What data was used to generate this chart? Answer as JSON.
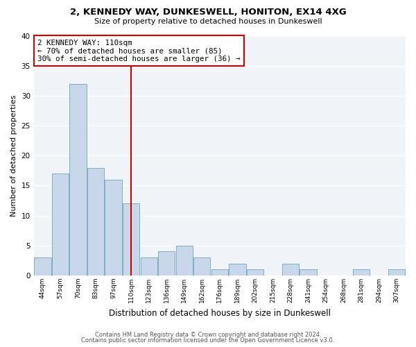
{
  "title": "2, KENNEDY WAY, DUNKESWELL, HONITON, EX14 4XG",
  "subtitle": "Size of property relative to detached houses in Dunkeswell",
  "xlabel": "Distribution of detached houses by size in Dunkeswell",
  "ylabel": "Number of detached properties",
  "bar_color": "#c8d8ea",
  "bar_edge_color": "#7aaec8",
  "background_color": "#ffffff",
  "plot_bg_color": "#f0f4f8",
  "grid_color": "#ffffff",
  "marker_line_color": "#cc0000",
  "categories": [
    "44sqm",
    "57sqm",
    "70sqm",
    "83sqm",
    "97sqm",
    "110sqm",
    "123sqm",
    "136sqm",
    "149sqm",
    "162sqm",
    "176sqm",
    "189sqm",
    "202sqm",
    "215sqm",
    "228sqm",
    "241sqm",
    "254sqm",
    "268sqm",
    "281sqm",
    "294sqm",
    "307sqm"
  ],
  "values": [
    3,
    17,
    32,
    18,
    16,
    12,
    3,
    4,
    5,
    3,
    1,
    2,
    1,
    0,
    2,
    1,
    0,
    0,
    1,
    0,
    1
  ],
  "ylim": [
    0,
    40
  ],
  "yticks": [
    0,
    5,
    10,
    15,
    20,
    25,
    30,
    35,
    40
  ],
  "annotation_title": "2 KENNEDY WAY: 110sqm",
  "annotation_line1": "← 70% of detached houses are smaller (85)",
  "annotation_line2": "30% of semi-detached houses are larger (36) →",
  "footer_line1": "Contains HM Land Registry data © Crown copyright and database right 2024.",
  "footer_line2": "Contains public sector information licensed under the Open Government Licence v3.0."
}
